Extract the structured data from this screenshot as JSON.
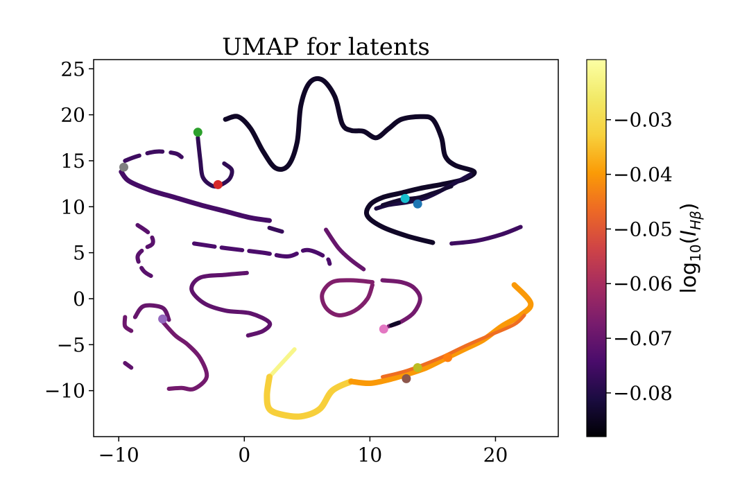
{
  "chart_data": {
    "type": "scatter",
    "title": "UMAP for latents",
    "xlabel": "",
    "ylabel": "",
    "xlim": [
      -12,
      25
    ],
    "ylim": [
      -15,
      26
    ],
    "xticks": [
      -10,
      0,
      10,
      20
    ],
    "yticks": [
      -10,
      -5,
      0,
      5,
      10,
      15,
      20,
      25
    ],
    "xtick_labels": [
      "−10",
      "0",
      "10",
      "20"
    ],
    "ytick_labels": [
      "−10",
      "−5",
      "0",
      "5",
      "10",
      "15",
      "20",
      "25"
    ],
    "grid": false,
    "colormap": "inferno",
    "colorbar": {
      "label": "log10(I_Hβ)",
      "label_base": "log",
      "label_sub": "10",
      "label_var": "I",
      "label_var_sub": "Hβ",
      "range": [
        -0.088,
        -0.019
      ],
      "ticks": [
        -0.03,
        -0.04,
        -0.05,
        -0.06,
        -0.07,
        -0.08
      ],
      "tick_labels": [
        "−0.03",
        "−0.04",
        "−0.05",
        "−0.06",
        "−0.07",
        "−0.08"
      ]
    },
    "curves": [
      {
        "value": -0.084,
        "points": [
          [
            -1.5,
            19.5
          ],
          [
            -0.5,
            19.8
          ],
          [
            0.5,
            18.5
          ],
          [
            1.5,
            16
          ],
          [
            2.5,
            14.2
          ],
          [
            3.5,
            14.5
          ],
          [
            4.2,
            17
          ],
          [
            4.5,
            21
          ],
          [
            5.2,
            23.5
          ],
          [
            6.2,
            23.8
          ],
          [
            7.2,
            22
          ],
          [
            7.8,
            19
          ],
          [
            8.5,
            18.3
          ],
          [
            9.5,
            18.2
          ],
          [
            10.5,
            17.5
          ],
          [
            11.5,
            18.5
          ],
          [
            12.5,
            19.5
          ],
          [
            14,
            19.8
          ],
          [
            15,
            19.5
          ],
          [
            15.7,
            17.5
          ],
          [
            16,
            15.5
          ],
          [
            16.8,
            14.5
          ],
          [
            18.3,
            13.8
          ],
          [
            17.5,
            13
          ],
          [
            16,
            12.5
          ],
          [
            14,
            12
          ],
          [
            12.5,
            11.5
          ],
          [
            11,
            11
          ],
          [
            10,
            10.2
          ],
          [
            9.8,
            9
          ],
          [
            11,
            7.8
          ],
          [
            13,
            6.8
          ],
          [
            15,
            6.1
          ]
        ],
        "width": 7
      },
      {
        "value": -0.081,
        "points": [
          [
            18,
            13.5
          ],
          [
            16,
            12
          ],
          [
            14.5,
            11
          ],
          [
            13,
            10.5
          ],
          [
            11.5,
            10.2
          ],
          [
            10.5,
            9.8
          ]
        ],
        "width": 6
      },
      {
        "value": -0.083,
        "points": [
          [
            11,
            10.2
          ],
          [
            12.5,
            10.8
          ],
          [
            13.8,
            11
          ],
          [
            15,
            11.5
          ],
          [
            16.5,
            12.2
          ]
        ],
        "width": 5
      },
      {
        "value": -0.078,
        "points": [
          [
            -3.7,
            17.5
          ],
          [
            -3.5,
            15
          ],
          [
            -3.3,
            13.2
          ],
          [
            -2.6,
            12.3
          ],
          [
            -2,
            12.3
          ],
          [
            -1.2,
            13
          ],
          [
            -1,
            14
          ],
          [
            -1.6,
            14.7
          ]
        ],
        "width": 6
      },
      {
        "value": -0.076,
        "points": [
          [
            -9.5,
            15
          ],
          [
            -8.5,
            15.5
          ],
          [
            -7,
            16
          ],
          [
            -5.5,
            15.8
          ],
          [
            -5,
            15.4
          ]
        ],
        "width": 6,
        "dash": [
          22,
          12
        ]
      },
      {
        "value": -0.075,
        "points": [
          [
            -9.8,
            13.8
          ],
          [
            -9.2,
            12.8
          ],
          [
            -7.5,
            11.8
          ],
          [
            -5.5,
            11
          ],
          [
            -3.5,
            10.2
          ],
          [
            -1.5,
            9.5
          ],
          [
            0.5,
            8.8
          ],
          [
            2,
            8.5
          ]
        ],
        "width": 7
      },
      {
        "value": -0.077,
        "points": [
          [
            2,
            7.7
          ],
          [
            3,
            7.3
          ]
        ],
        "width": 6
      },
      {
        "value": -0.074,
        "points": [
          [
            -4,
            6
          ],
          [
            -1.5,
            5.5
          ],
          [
            1.5,
            5
          ],
          [
            3.5,
            4.6
          ],
          [
            5,
            5.3
          ],
          [
            6.5,
            4.5
          ],
          [
            6.8,
            3.8
          ]
        ],
        "width": 6,
        "dash": [
          30,
          10
        ]
      },
      {
        "value": -0.072,
        "points": [
          [
            -8.5,
            8
          ],
          [
            -7.5,
            7
          ],
          [
            -7.3,
            6
          ],
          [
            -8,
            5.4
          ],
          [
            -8.5,
            4.5
          ],
          [
            -8,
            3
          ],
          [
            -7,
            2.2
          ]
        ],
        "width": 6,
        "dash": [
          18,
          10
        ]
      },
      {
        "value": -0.071,
        "points": [
          [
            0.2,
            2.8
          ],
          [
            -1.5,
            2.6
          ],
          [
            -3.5,
            2.3
          ],
          [
            -4.2,
            1
          ],
          [
            -3.2,
            -0.5
          ],
          [
            -1.5,
            -1.3
          ],
          [
            0.5,
            -1.6
          ],
          [
            2,
            -2.6
          ],
          [
            1.5,
            -3.5
          ],
          [
            0.3,
            -4
          ]
        ],
        "width": 6
      },
      {
        "value": -0.07,
        "points": [
          [
            6.5,
            7.5
          ],
          [
            7.5,
            5.5
          ],
          [
            8.5,
            4.2
          ],
          [
            9.5,
            3.2
          ]
        ],
        "width": 6
      },
      {
        "value": -0.066,
        "points": [
          [
            10.2,
            1.8
          ],
          [
            8.5,
            2
          ],
          [
            7,
            1.8
          ],
          [
            6.2,
            0.5
          ],
          [
            6.5,
            -1
          ],
          [
            7.5,
            -1.8
          ],
          [
            8.8,
            -1.3
          ],
          [
            9.8,
            0
          ],
          [
            10.2,
            1.5
          ]
        ],
        "width": 6
      },
      {
        "value": -0.068,
        "points": [
          [
            11,
            2
          ],
          [
            12.5,
            1.8
          ],
          [
            13.5,
            1.2
          ],
          [
            14,
            0
          ],
          [
            13.5,
            -1.5
          ],
          [
            12.5,
            -2.5
          ],
          [
            11.5,
            -3
          ]
        ],
        "width": 6
      },
      {
        "value": -0.07,
        "points": [
          [
            -8.7,
            -2
          ],
          [
            -8,
            -0.8
          ],
          [
            -6.5,
            -1
          ],
          [
            -6,
            -2.3
          ]
        ],
        "width": 6
      },
      {
        "value": -0.069,
        "points": [
          [
            -9.5,
            -2
          ],
          [
            -9.5,
            -3
          ],
          [
            -9,
            -3.5
          ]
        ],
        "width": 6
      },
      {
        "value": -0.068,
        "points": [
          [
            -6.5,
            -2.5
          ],
          [
            -5.5,
            -4
          ],
          [
            -4.5,
            -5
          ],
          [
            -3.5,
            -6.5
          ],
          [
            -3,
            -8.5
          ],
          [
            -4,
            -9.8
          ],
          [
            -5,
            -9.7
          ],
          [
            -6,
            -9.8
          ]
        ],
        "width": 6
      },
      {
        "value": -0.071,
        "points": [
          [
            -9.5,
            -7
          ],
          [
            -9,
            -7.5
          ]
        ],
        "width": 6
      },
      {
        "value": -0.022,
        "points": [
          [
            4,
            -5.5
          ],
          [
            3,
            -7
          ],
          [
            2,
            -8.5
          ]
        ],
        "width": 6
      },
      {
        "value": -0.033,
        "points": [
          [
            2,
            -8.5
          ],
          [
            1.8,
            -10.5
          ],
          [
            2,
            -12
          ],
          [
            3,
            -12.6
          ],
          [
            4.5,
            -12.8
          ],
          [
            6,
            -12
          ],
          [
            7,
            -10
          ],
          [
            8.5,
            -9
          ]
        ],
        "width": 9
      },
      {
        "value": -0.04,
        "points": [
          [
            8.5,
            -9
          ],
          [
            10,
            -9.2
          ],
          [
            11.5,
            -8.8
          ],
          [
            13,
            -8.2
          ],
          [
            14.5,
            -7.5
          ],
          [
            16,
            -6.5
          ],
          [
            17.5,
            -5.5
          ],
          [
            19,
            -4.5
          ],
          [
            20.5,
            -3
          ],
          [
            22,
            -1.8
          ],
          [
            22.8,
            -0.5
          ],
          [
            21.5,
            1.5
          ]
        ],
        "width": 8
      },
      {
        "value": -0.046,
        "points": [
          [
            11,
            -8.5
          ],
          [
            13,
            -7.8
          ],
          [
            15.5,
            -6.5
          ],
          [
            17.5,
            -5.2
          ],
          [
            19.5,
            -4
          ],
          [
            21.5,
            -2.8
          ],
          [
            22.3,
            -1.8
          ]
        ],
        "width": 5
      },
      {
        "value": -0.084,
        "points": [
          [
            11.7,
            -2.9
          ],
          [
            12.3,
            -2.6
          ]
        ],
        "width": 6
      },
      {
        "value": -0.076,
        "points": [
          [
            16.5,
            6
          ],
          [
            18.5,
            6.3
          ],
          [
            20.5,
            7
          ],
          [
            22,
            7.8
          ]
        ],
        "width": 6
      }
    ],
    "highlighted_points": [
      {
        "x": -3.7,
        "y": 18.1,
        "color": "#2ca02c"
      },
      {
        "x": -9.6,
        "y": 14.3,
        "color": "#7f7f7f"
      },
      {
        "x": -2.1,
        "y": 12.4,
        "color": "#d62728"
      },
      {
        "x": 12.8,
        "y": 10.9,
        "color": "#17becf"
      },
      {
        "x": 13.8,
        "y": 10.3,
        "color": "#1f77b4"
      },
      {
        "x": -6.5,
        "y": -2.2,
        "color": "#9467bd"
      },
      {
        "x": 11.1,
        "y": -3.3,
        "color": "#e377c2"
      },
      {
        "x": 13.8,
        "y": -7.5,
        "color": "#bcbd22"
      },
      {
        "x": 16.2,
        "y": -6.4,
        "color": "#ff7f0e"
      },
      {
        "x": 12.9,
        "y": -8.7,
        "color": "#8c564b"
      }
    ]
  }
}
